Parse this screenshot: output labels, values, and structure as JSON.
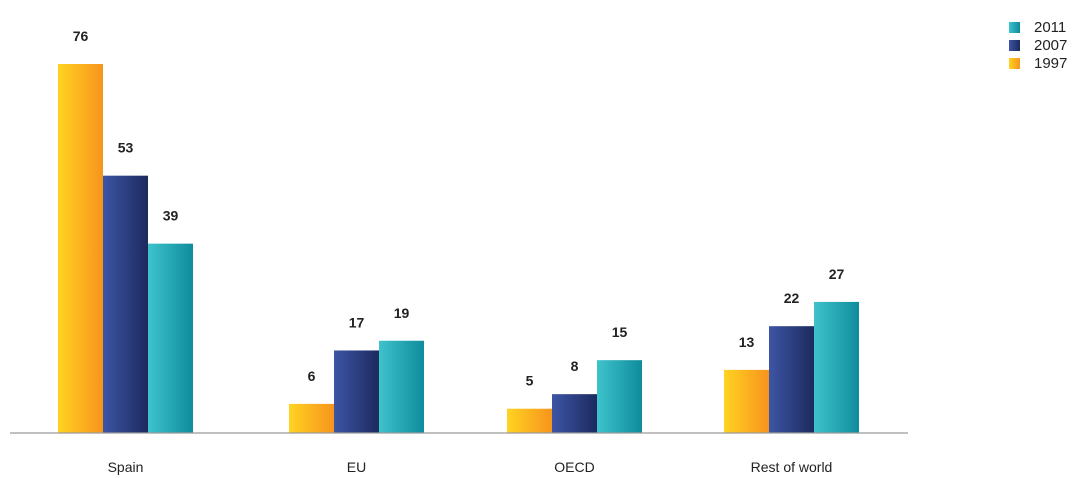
{
  "chart_data": {
    "type": "bar",
    "categories": [
      "Spain",
      "EU",
      "OECD",
      "Rest of world"
    ],
    "series": [
      {
        "name": "1997",
        "values": [
          76,
          6,
          5,
          13
        ],
        "color": "#f9a41c",
        "gradient": [
          "#ffd321",
          "#f7941d"
        ]
      },
      {
        "name": "2007",
        "values": [
          53,
          17,
          8,
          22
        ],
        "color": "#2e3f83",
        "gradient": [
          "#3d55a5",
          "#1c2a5e"
        ]
      },
      {
        "name": "2011",
        "values": [
          39,
          19,
          15,
          27
        ],
        "color": "#1ba5b4",
        "gradient": [
          "#3ec3cc",
          "#0f8c9c"
        ]
      }
    ],
    "legend": {
      "position": "top-right",
      "order": [
        "2011",
        "2007",
        "1997"
      ]
    },
    "ylim": [
      0,
      76
    ],
    "grid": false
  }
}
